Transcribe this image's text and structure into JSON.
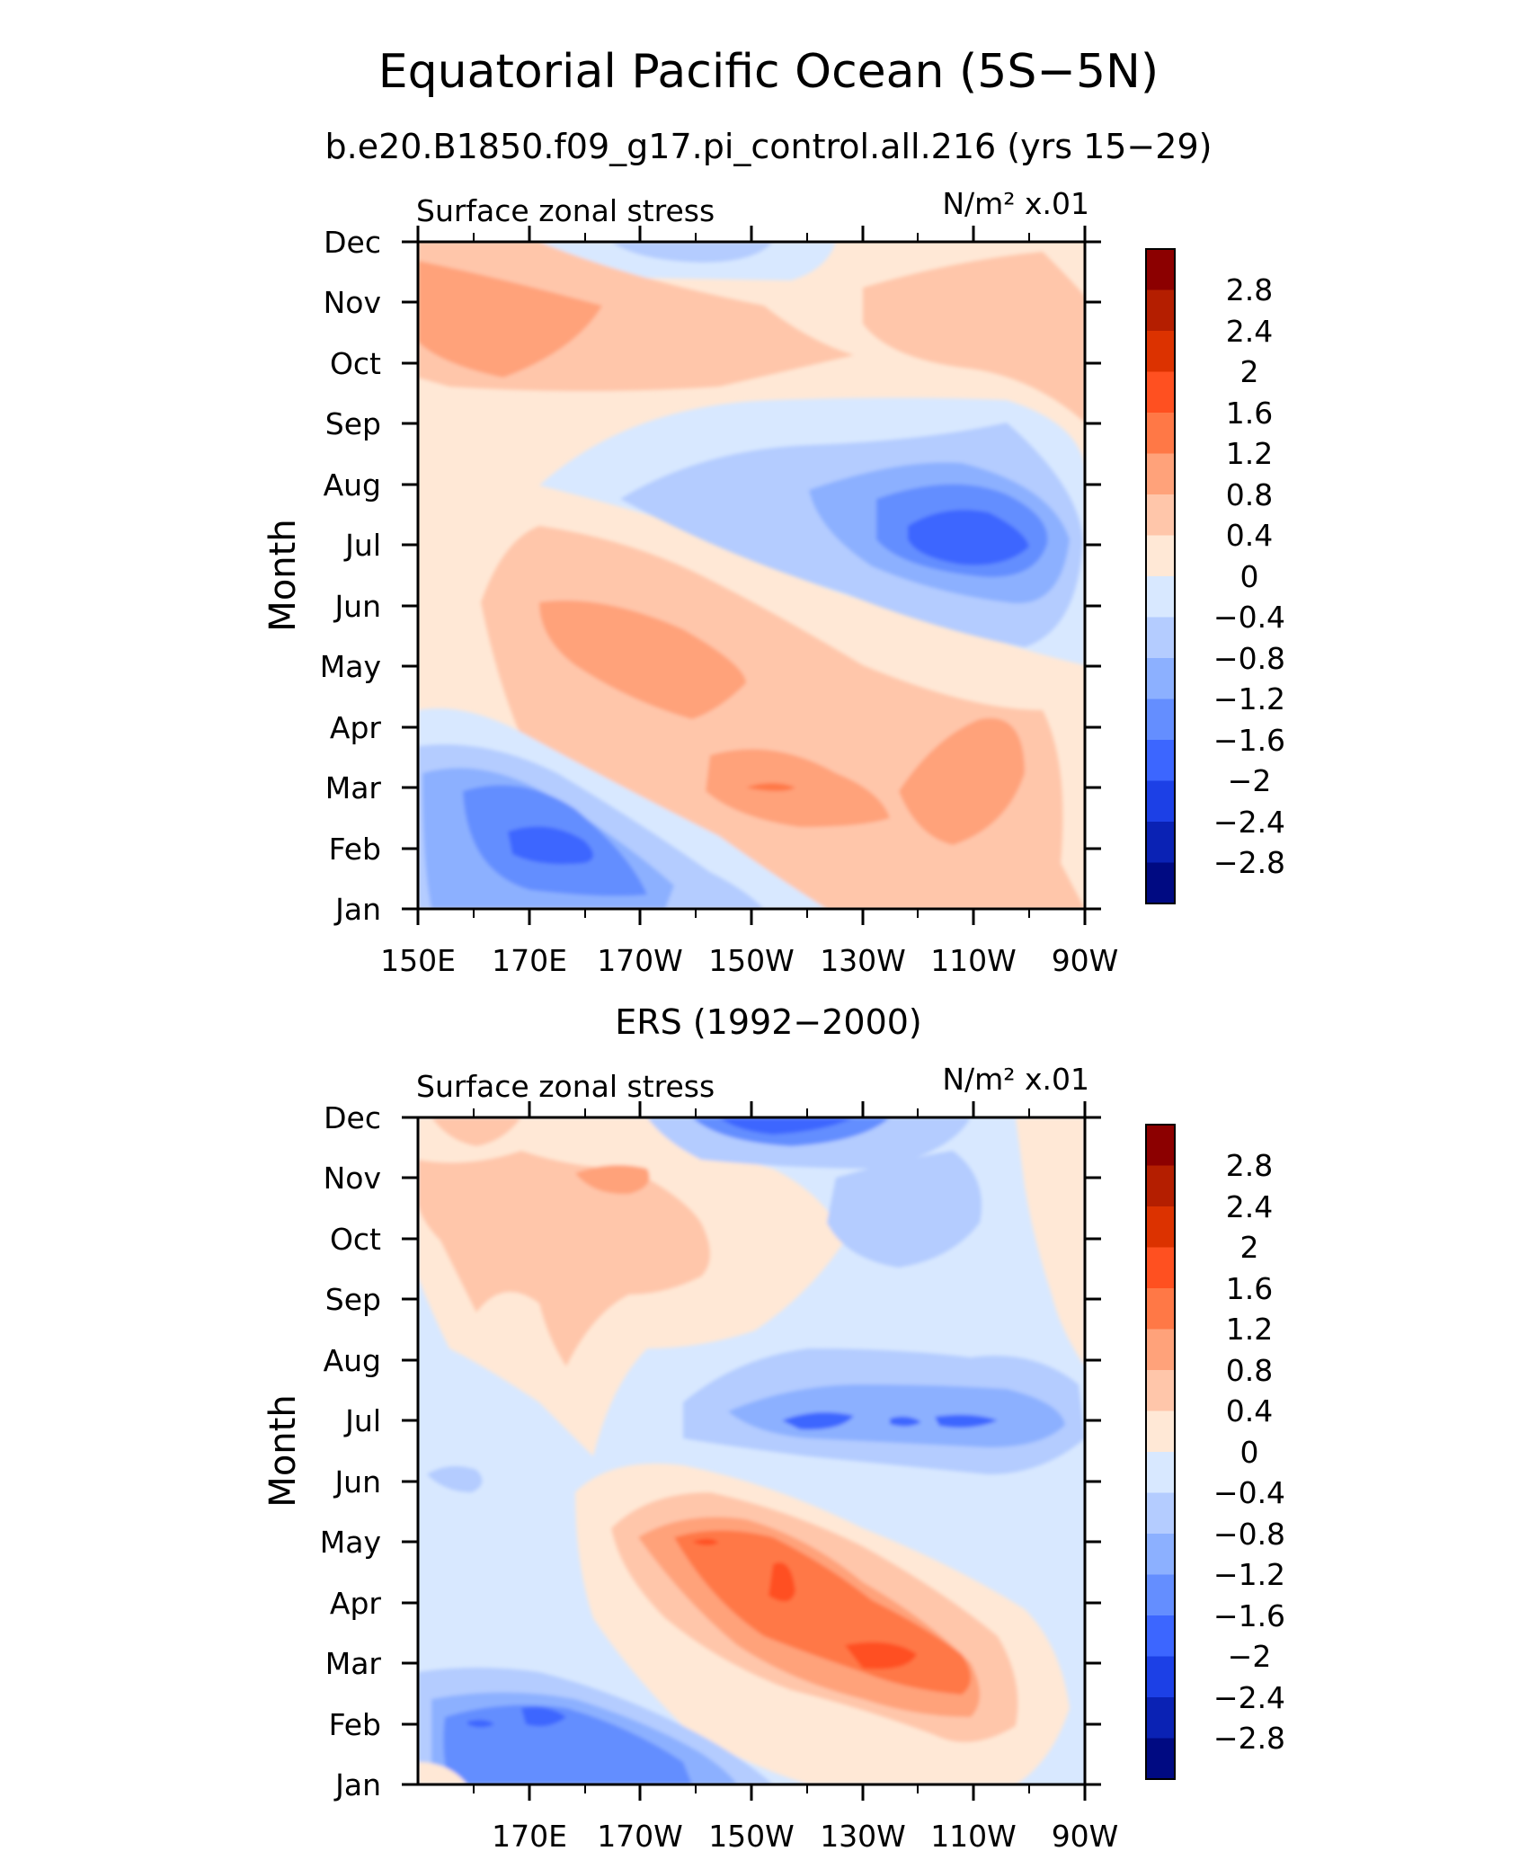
{
  "figure": {
    "title": "Equatorial Pacific Ocean (5S−5N)"
  },
  "colorbar_levels": [
    "2.8",
    "2.4",
    "2",
    "1.6",
    "1.2",
    "0.8",
    "0.4",
    "0",
    "−0.4",
    "−0.8",
    "−1.2",
    "−1.6",
    "−2",
    "−2.4",
    "−2.8"
  ],
  "colorbar_colors": [
    "#8c0000",
    "#b41e00",
    "#dc3200",
    "#ff5020",
    "#ff7846",
    "#ffa27a",
    "#ffc6aa",
    "#ffe8d6",
    "#d8e8ff",
    "#b4ccff",
    "#8cb0ff",
    "#648eff",
    "#3c66ff",
    "#1c40e6",
    "#0a22b4",
    "#000a82"
  ],
  "chart_data": [
    {
      "type": "heatmap",
      "title": "b.e20.B1850.f09_g17.pi_control.all.216 (yrs 15−29)",
      "left_label": "Surface zonal stress",
      "units": "N/m² x.01",
      "ylabel": "Month",
      "x_ticks": [
        "150E",
        "170E",
        "170W",
        "150W",
        "130W",
        "110W",
        "90W"
      ],
      "x_tick_lon": [
        150,
        170,
        190,
        210,
        230,
        250,
        270
      ],
      "y_ticks": [
        "Jan",
        "Feb",
        "Mar",
        "Apr",
        "May",
        "Jun",
        "Jul",
        "Aug",
        "Sep",
        "Oct",
        "Nov",
        "Dec"
      ],
      "xlim": [
        150,
        270
      ],
      "ylim": [
        1,
        12
      ],
      "grid": false,
      "legend": "right colorbar"
    },
    {
      "type": "heatmap",
      "title": "ERS (1992−2000)",
      "left_label": "Surface zonal stress",
      "units": "N/m² x.01",
      "ylabel": "Month",
      "x_ticks": [
        "170E",
        "170W",
        "150W",
        "130W",
        "110W",
        "90W"
      ],
      "x_tick_lon": [
        170,
        190,
        210,
        230,
        250,
        270
      ],
      "y_ticks": [
        "Jan",
        "Feb",
        "Mar",
        "Apr",
        "May",
        "Jun",
        "Jul",
        "Aug",
        "Sep",
        "Oct",
        "Nov",
        "Dec"
      ],
      "xlim": [
        150,
        270
      ],
      "ylim": [
        1,
        12
      ],
      "grid": false,
      "legend": "right colorbar"
    }
  ]
}
